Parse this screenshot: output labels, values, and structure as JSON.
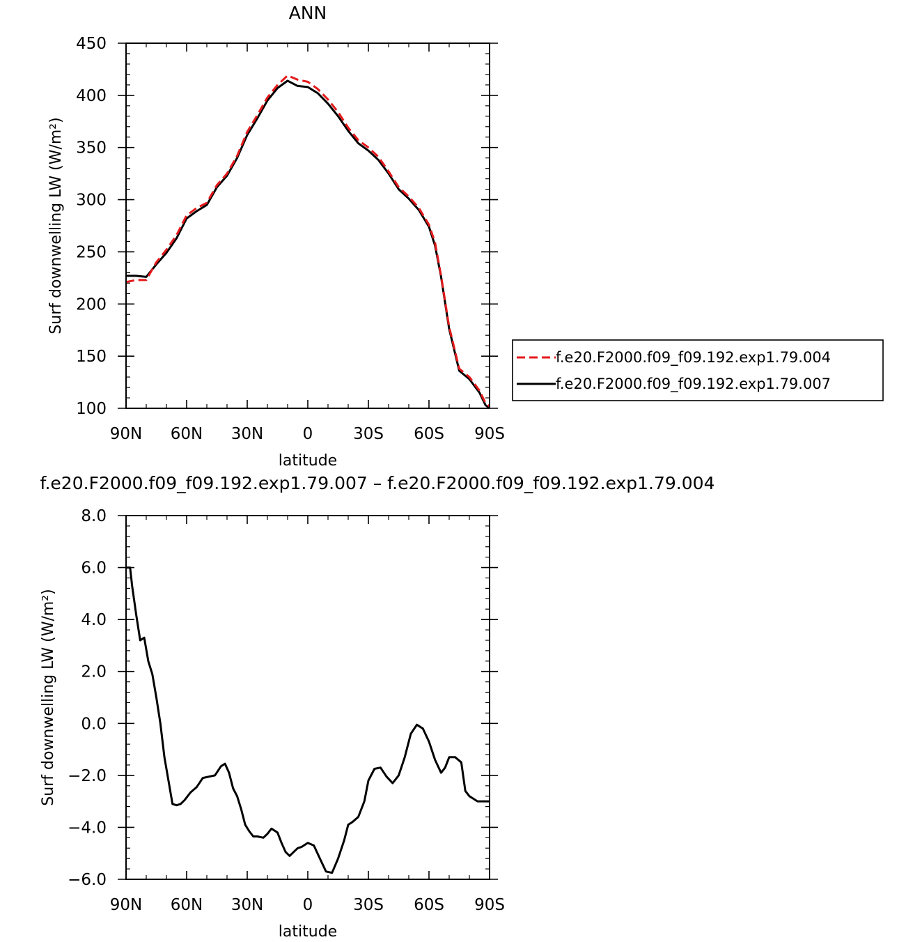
{
  "chart_data": [
    {
      "type": "line",
      "title": "ANN",
      "xlabel": "latitude",
      "ylabel": "Surf downwelling LW (W/m²)",
      "x_tick_labels": [
        "90N",
        "60N",
        "30N",
        "0",
        "30S",
        "60S",
        "90S"
      ],
      "x_ticks": [
        90,
        60,
        30,
        0,
        -30,
        -60,
        -90
      ],
      "xlim": [
        90,
        -90
      ],
      "y_tick_labels": [
        "100",
        "150",
        "200",
        "250",
        "300",
        "350",
        "400",
        "450"
      ],
      "y_ticks": [
        100,
        150,
        200,
        250,
        300,
        350,
        400,
        450
      ],
      "ylim": [
        100,
        450
      ],
      "legend_position": "right",
      "x": [
        90,
        85,
        80,
        75,
        70,
        65,
        60,
        55,
        50,
        45,
        40,
        35,
        30,
        25,
        20,
        15,
        10,
        5,
        0,
        -5,
        -10,
        -15,
        -20,
        -25,
        -30,
        -35,
        -40,
        -45,
        -50,
        -55,
        -60,
        -63,
        -66,
        -70,
        -75,
        -80,
        -85,
        -88,
        -90
      ],
      "series": [
        {
          "name": "f.e20.F2000.f09_f09.192.exp1.79.004",
          "color": "#e41a1c",
          "dash": "dashed",
          "values": [
            221,
            223,
            223,
            240,
            252,
            266,
            285,
            292,
            297,
            314,
            325,
            342,
            365,
            381,
            398,
            410,
            419,
            415,
            413,
            406,
            396,
            384,
            369,
            357,
            350,
            341,
            327,
            312,
            303,
            292,
            276,
            259,
            227,
            178,
            138,
            130,
            117,
            105,
            102
          ]
        },
        {
          "name": "f.e20.F2000.f09_f09.192.exp1.79.007",
          "color": "#000000",
          "dash": "solid",
          "values": [
            227,
            227,
            226,
            238,
            249,
            263,
            282,
            289,
            295,
            312,
            323,
            340,
            362,
            378,
            395,
            407,
            414,
            409,
            408,
            402,
            392,
            380,
            366,
            354,
            347,
            338,
            325,
            310,
            301,
            290,
            274,
            256,
            226,
            176,
            136,
            128,
            115,
            103,
            100
          ]
        }
      ]
    },
    {
      "type": "line",
      "title": "f.e20.F2000.f09_f09.192.exp1.79.007 – f.e20.F2000.f09_f09.192.exp1.79.004",
      "xlabel": "latitude",
      "ylabel": "Surf downwelling LW (W/m²)",
      "x_tick_labels": [
        "90N",
        "60N",
        "30N",
        "0",
        "30S",
        "60S",
        "90S"
      ],
      "x_ticks": [
        90,
        60,
        30,
        0,
        -30,
        -60,
        -90
      ],
      "xlim": [
        90,
        -90
      ],
      "y_tick_labels": [
        "−6.0",
        "−4.0",
        "−2.0",
        "0.0",
        "2.0",
        "4.0",
        "6.0",
        "8.0"
      ],
      "y_ticks": [
        -6,
        -4,
        -2,
        0,
        2,
        4,
        6,
        8
      ],
      "ylim": [
        -6,
        8
      ],
      "x": [
        90,
        88,
        87,
        85,
        83,
        81,
        79,
        77,
        75,
        73,
        71,
        69,
        67,
        65,
        63,
        61,
        58,
        55,
        52,
        49,
        46,
        43,
        41,
        39,
        37,
        35,
        33,
        31,
        29,
        27,
        25,
        22,
        20,
        18,
        15,
        13,
        11,
        9,
        7,
        5,
        3,
        0,
        -3,
        -6,
        -9,
        -12,
        -15,
        -18,
        -20,
        -22,
        -25,
        -28,
        -30,
        -33,
        -36,
        -39,
        -42,
        -45,
        -48,
        -51,
        -54,
        -57,
        -60,
        -63,
        -66,
        -68,
        -70,
        -73,
        -76,
        -78,
        -80,
        -82,
        -84,
        -86,
        -88,
        -90
      ],
      "series": [
        {
          "name": "",
          "color": "#000000",
          "dash": "solid",
          "values": [
            6.0,
            6.0,
            5.3,
            4.2,
            3.2,
            3.3,
            2.4,
            1.9,
            1.0,
            0.0,
            -1.3,
            -2.2,
            -3.1,
            -3.15,
            -3.1,
            -2.95,
            -2.65,
            -2.45,
            -2.1,
            -2.05,
            -2.0,
            -1.65,
            -1.55,
            -1.9,
            -2.5,
            -2.8,
            -3.3,
            -3.9,
            -4.15,
            -4.35,
            -4.35,
            -4.4,
            -4.25,
            -4.05,
            -4.2,
            -4.6,
            -4.95,
            -5.1,
            -4.95,
            -4.8,
            -4.75,
            -4.6,
            -4.7,
            -5.2,
            -5.7,
            -5.75,
            -5.2,
            -4.5,
            -3.9,
            -3.8,
            -3.6,
            -3.0,
            -2.2,
            -1.75,
            -1.7,
            -2.05,
            -2.3,
            -2.0,
            -1.3,
            -0.4,
            -0.05,
            -0.2,
            -0.7,
            -1.4,
            -1.9,
            -1.7,
            -1.3,
            -1.3,
            -1.5,
            -2.6,
            -2.8,
            -2.9,
            -3.0,
            -3.0,
            -3.0,
            -3.0
          ]
        }
      ]
    }
  ]
}
